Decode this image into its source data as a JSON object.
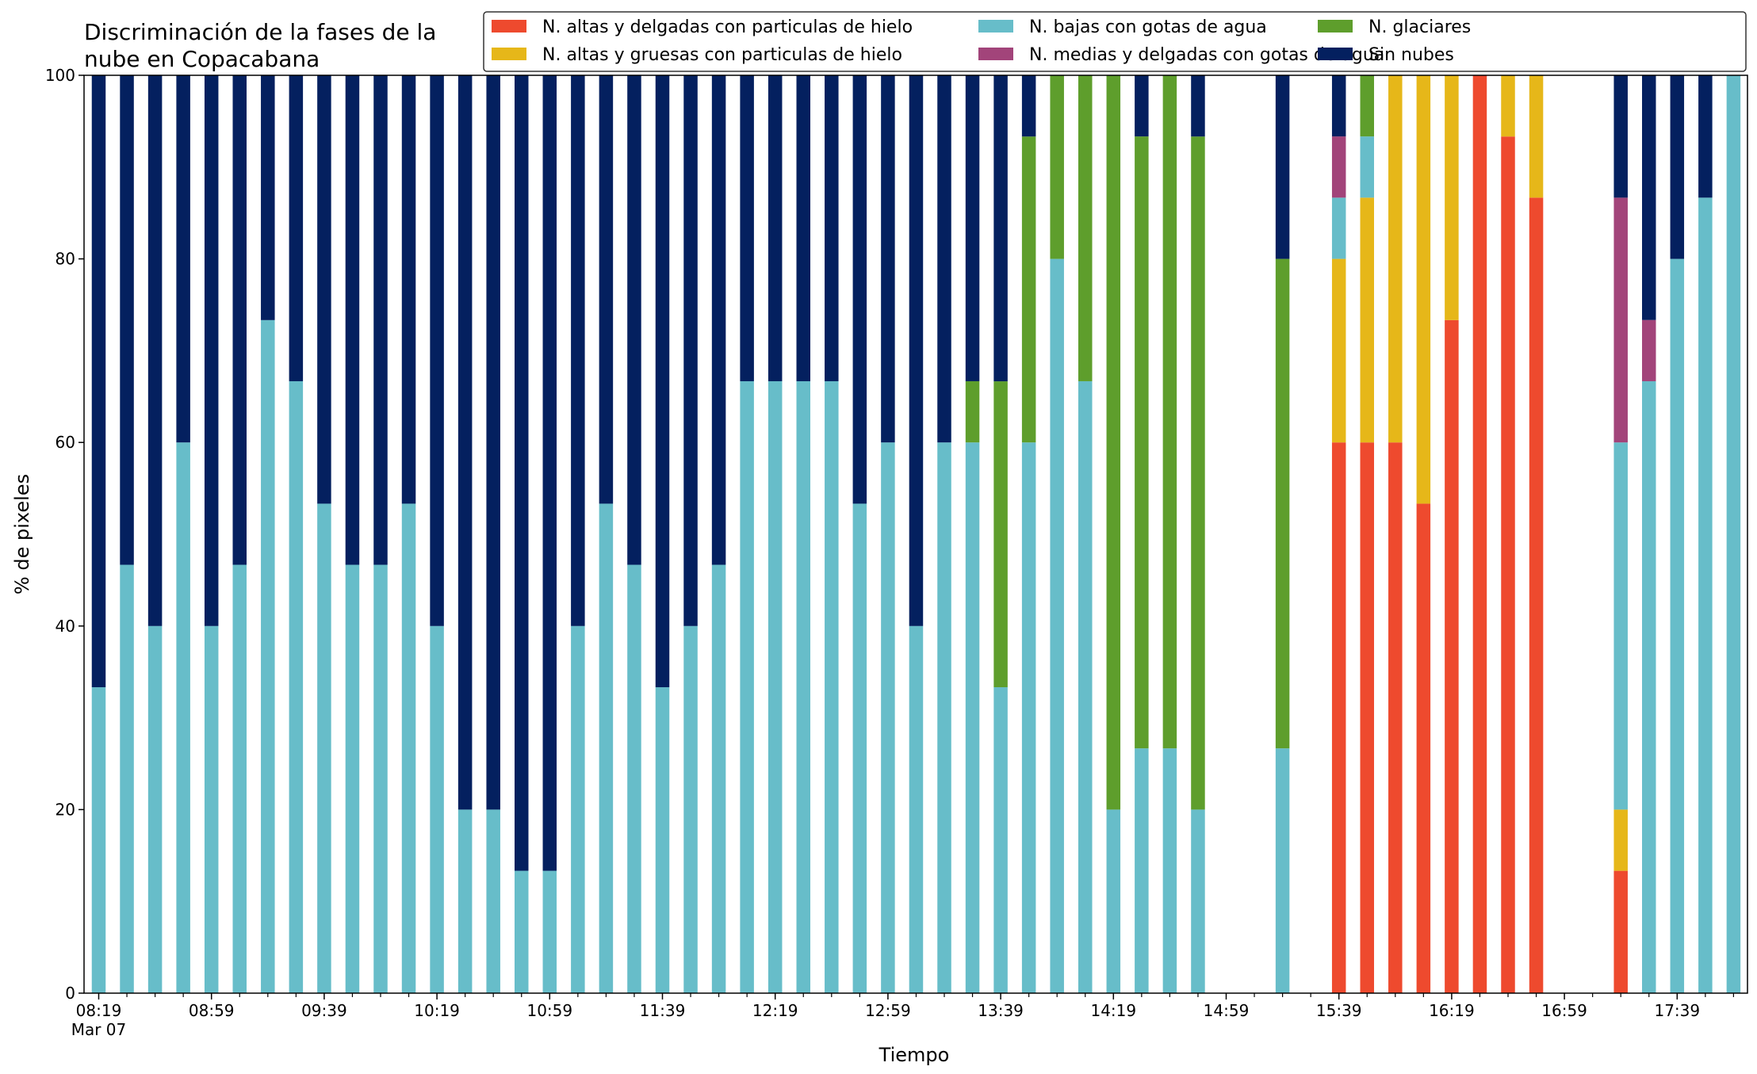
{
  "chart_data": {
    "type": "bar",
    "stacked": true,
    "title_lines": [
      "Discriminación de la fases de la",
      "nube en Copacabana"
    ],
    "xlabel": "Tiempo",
    "ylabel": "% de pixeles",
    "ylim": [
      0,
      100
    ],
    "yticks": [
      "0",
      "20",
      "40",
      "60",
      "80",
      "100"
    ],
    "xtick_labels": [
      "08:19",
      "08:59",
      "09:39",
      "10:19",
      "10:59",
      "11:39",
      "12:19",
      "12:59",
      "13:39",
      "14:19",
      "14:59",
      "15:39",
      "16:19",
      "16:59",
      "17:39"
    ],
    "xtick_sublabel": "Mar 07",
    "grid": false,
    "legend_placement": "top-right",
    "series": [
      {
        "name": "N. altas y delgadas con particulas de hielo",
        "color": "#ee4a2e",
        "values": [
          0,
          0,
          0,
          0,
          0,
          0,
          0,
          0,
          0,
          0,
          0,
          0,
          0,
          0,
          0,
          0,
          0,
          0,
          0,
          0,
          0,
          0,
          0,
          0,
          0,
          0,
          0,
          0,
          0,
          0,
          0,
          0,
          0,
          0,
          0,
          0,
          0,
          0,
          0,
          0,
          0,
          0,
          0,
          0,
          60,
          60,
          60,
          53.33,
          73.33,
          100,
          93.33,
          86.67,
          0,
          0,
          13.33,
          0,
          0,
          0,
          0
        ]
      },
      {
        "name": "N. altas y gruesas con particulas de hielo",
        "color": "#e6b719",
        "values": [
          0,
          0,
          0,
          0,
          0,
          0,
          0,
          0,
          0,
          0,
          0,
          0,
          0,
          0,
          0,
          0,
          0,
          0,
          0,
          0,
          0,
          0,
          0,
          0,
          0,
          0,
          0,
          0,
          0,
          0,
          0,
          0,
          0,
          0,
          0,
          0,
          0,
          0,
          0,
          0,
          0,
          0,
          0,
          0,
          20,
          26.67,
          40,
          46.67,
          26.67,
          0,
          6.67,
          13.33,
          0,
          0,
          6.67,
          0,
          0,
          0,
          0
        ]
      },
      {
        "name": "N. bajas con gotas de agua",
        "color": "#67bdc9",
        "values": [
          33.33,
          46.67,
          40,
          60,
          40,
          46.67,
          73.33,
          66.67,
          53.33,
          46.67,
          46.67,
          53.33,
          40,
          20,
          20,
          13.33,
          13.33,
          40,
          53.33,
          46.67,
          33.33,
          40,
          46.67,
          66.67,
          66.67,
          66.67,
          66.67,
          53.33,
          60,
          40,
          60,
          60,
          33.33,
          60,
          80,
          66.67,
          20,
          26.67,
          26.67,
          20,
          0,
          0,
          26.67,
          0,
          6.67,
          6.67,
          0,
          0,
          0,
          0,
          0,
          0,
          0,
          0,
          40,
          66.67,
          80,
          86.67,
          100
        ]
      },
      {
        "name": "N. medias y delgadas con gotas de agua",
        "color": "#a2447a",
        "values": [
          0,
          0,
          0,
          0,
          0,
          0,
          0,
          0,
          0,
          0,
          0,
          0,
          0,
          0,
          0,
          0,
          0,
          0,
          0,
          0,
          0,
          0,
          0,
          0,
          0,
          0,
          0,
          0,
          0,
          0,
          0,
          0,
          0,
          0,
          0,
          0,
          0,
          0,
          0,
          0,
          0,
          0,
          0,
          0,
          6.67,
          0,
          0,
          0,
          0,
          0,
          0,
          0,
          0,
          0,
          26.67,
          6.67,
          0,
          0,
          0
        ]
      },
      {
        "name": "N. glaciares",
        "color": "#5e9e2c",
        "values": [
          0,
          0,
          0,
          0,
          0,
          0,
          0,
          0,
          0,
          0,
          0,
          0,
          0,
          0,
          0,
          0,
          0,
          0,
          0,
          0,
          0,
          0,
          0,
          0,
          0,
          0,
          0,
          0,
          0,
          0,
          0,
          6.67,
          33.33,
          33.33,
          20,
          33.33,
          80,
          66.67,
          73.33,
          73.33,
          0,
          0,
          53.33,
          0,
          0,
          6.67,
          0,
          0,
          0,
          0,
          0,
          0,
          0,
          0,
          0,
          0,
          0,
          0,
          0
        ]
      },
      {
        "name": "Sin nubes",
        "color": "#04205f",
        "values": [
          66.67,
          53.33,
          60,
          40,
          60,
          53.33,
          26.67,
          33.33,
          46.67,
          53.33,
          53.33,
          46.67,
          60,
          80,
          80,
          86.67,
          86.67,
          60,
          46.67,
          53.33,
          66.67,
          60,
          53.33,
          33.33,
          33.33,
          33.33,
          33.33,
          46.67,
          40,
          60,
          40,
          33.33,
          33.33,
          6.67,
          0,
          0,
          0,
          6.67,
          0,
          6.67,
          0,
          0,
          20,
          0,
          6.67,
          0,
          0,
          0,
          0,
          0,
          0,
          0,
          0,
          0,
          13.33,
          26.67,
          20,
          13.33,
          0
        ]
      }
    ]
  }
}
